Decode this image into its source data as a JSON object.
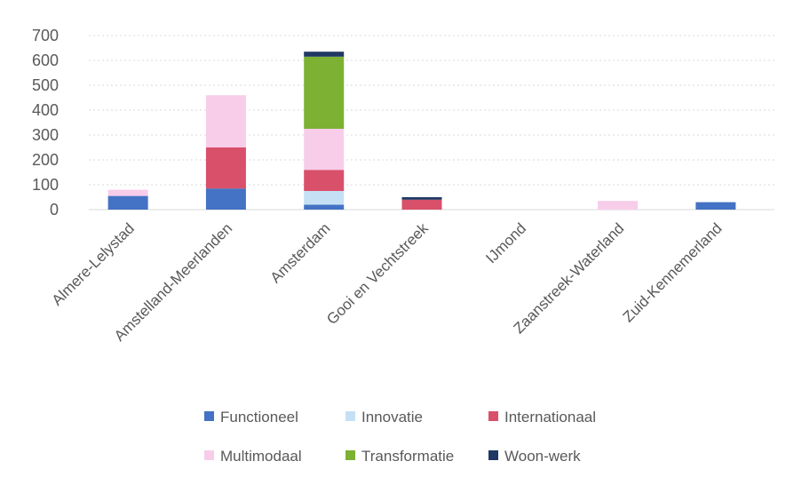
{
  "chart_data": {
    "type": "bar",
    "stacked": true,
    "title": "",
    "xlabel": "",
    "ylabel": "",
    "ylim": [
      0,
      700
    ],
    "yticks": [
      0,
      100,
      200,
      300,
      400,
      500,
      600,
      700
    ],
    "grid": true,
    "legend_position": "bottom",
    "categories": [
      "Almere-Lelystad",
      "Amstelland-Meerlanden",
      "Amsterdam",
      "Gooi en Vechtstreek",
      "IJmond",
      "Zaanstreek-Waterland",
      "Zuid-Kennemerland"
    ],
    "series": [
      {
        "name": "Functioneel",
        "color": "#4472c4",
        "values": [
          55,
          85,
          20,
          0,
          0,
          0,
          30
        ]
      },
      {
        "name": "Innovatie",
        "color": "#c5e0f4",
        "values": [
          0,
          0,
          55,
          0,
          0,
          0,
          0
        ]
      },
      {
        "name": "Internationaal",
        "color": "#d9506a",
        "values": [
          0,
          165,
          85,
          40,
          0,
          0,
          0
        ]
      },
      {
        "name": "Multimodaal",
        "color": "#f7cdea",
        "values": [
          25,
          210,
          165,
          0,
          0,
          35,
          0
        ]
      },
      {
        "name": "Transformatie",
        "color": "#7cb133",
        "values": [
          0,
          0,
          290,
          0,
          0,
          0,
          0
        ]
      },
      {
        "name": "Woon-werk",
        "color": "#203864",
        "values": [
          0,
          0,
          20,
          10,
          0,
          0,
          0
        ]
      }
    ]
  }
}
